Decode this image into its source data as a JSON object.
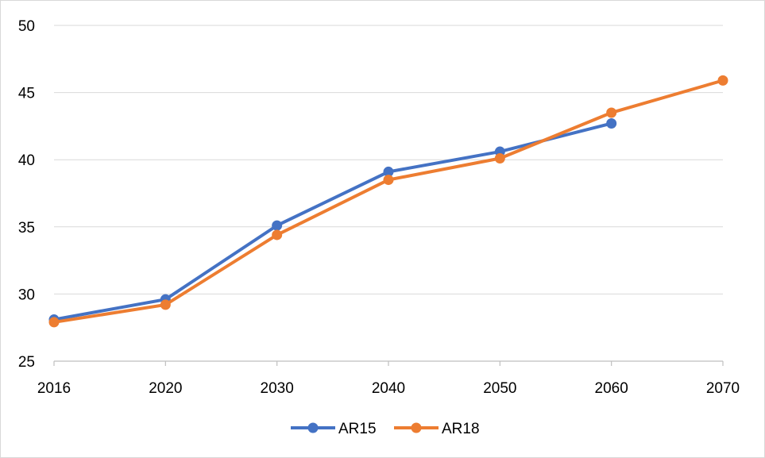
{
  "chart_data": {
    "type": "line",
    "categories": [
      "2016",
      "2020",
      "2030",
      "2040",
      "2050",
      "2060",
      "2070"
    ],
    "ylim": [
      25,
      50
    ],
    "yticks": [
      25,
      30,
      35,
      40,
      45,
      50
    ],
    "grid": true,
    "legend_position": "bottom",
    "series": [
      {
        "name": "AR15",
        "color": "#4472c4",
        "values": [
          28.1,
          29.6,
          35.1,
          39.1,
          40.6,
          42.7,
          null
        ]
      },
      {
        "name": "AR18",
        "color": "#ed7d31",
        "values": [
          27.9,
          29.2,
          34.4,
          38.5,
          40.1,
          43.5,
          45.9
        ]
      }
    ]
  }
}
